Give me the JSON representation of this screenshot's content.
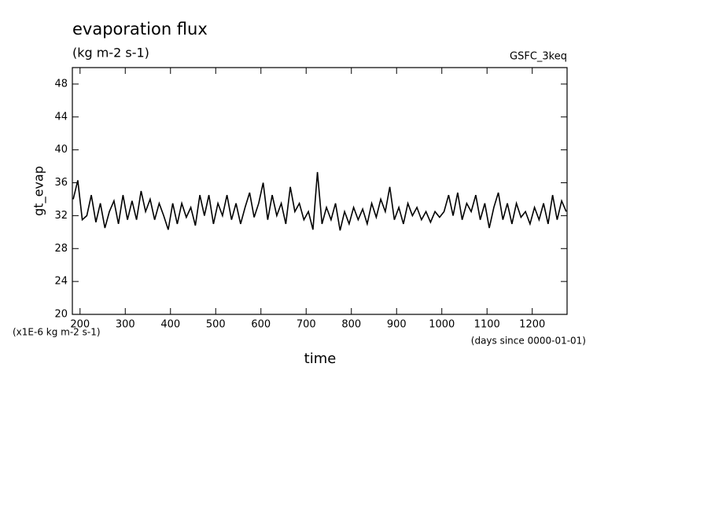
{
  "chart_data": {
    "type": "line",
    "title": "evaporation flux",
    "subtitle": "(kg m-2 s-1)",
    "annotation": "GSFC_3keq",
    "y_label": "gt_evap",
    "x_label": "time",
    "y_unit": "(x1E-6 kg m-2 s-1)",
    "x_unit": "(days since 0000-01-01)",
    "xlim": [
      183,
      1277
    ],
    "ylim": [
      20,
      50
    ],
    "xticks": [
      200,
      300,
      400,
      500,
      600,
      700,
      800,
      900,
      1000,
      1100,
      1200
    ],
    "yticks": [
      20,
      24,
      28,
      32,
      36,
      40,
      44,
      48
    ],
    "x": [
      185,
      195,
      205,
      215,
      225,
      235,
      245,
      255,
      265,
      275,
      285,
      295,
      305,
      315,
      325,
      335,
      345,
      355,
      365,
      375,
      385,
      395,
      405,
      415,
      425,
      435,
      445,
      455,
      465,
      475,
      485,
      495,
      505,
      515,
      525,
      535,
      545,
      555,
      565,
      575,
      585,
      595,
      605,
      615,
      625,
      635,
      645,
      655,
      665,
      675,
      685,
      695,
      705,
      715,
      725,
      735,
      745,
      755,
      765,
      775,
      785,
      795,
      805,
      815,
      825,
      835,
      845,
      855,
      865,
      875,
      885,
      895,
      905,
      915,
      925,
      935,
      945,
      955,
      965,
      975,
      985,
      995,
      1005,
      1015,
      1025,
      1035,
      1045,
      1055,
      1065,
      1075,
      1085,
      1095,
      1105,
      1115,
      1125,
      1135,
      1145,
      1155,
      1165,
      1175,
      1185,
      1195,
      1205,
      1215,
      1225,
      1235,
      1245,
      1255,
      1265,
      1275
    ],
    "series": [
      {
        "name": "gt_evap",
        "color": "#000000",
        "values": [
          34,
          36.3,
          31.5,
          32,
          34.5,
          31.2,
          33.5,
          30.5,
          32.5,
          33.8,
          31,
          34.5,
          31.5,
          33.8,
          31.5,
          35,
          32.5,
          34,
          31.5,
          33.5,
          32,
          30.3,
          33.5,
          31,
          33.5,
          31.8,
          33,
          30.8,
          34.5,
          32,
          34.5,
          31,
          33.5,
          32,
          34.5,
          31.5,
          33.5,
          31,
          33,
          34.8,
          31.8,
          33.5,
          36,
          31.5,
          34.5,
          32,
          33.5,
          31,
          35.5,
          32.5,
          33.5,
          31.5,
          32.5,
          30.3,
          37.3,
          31,
          33,
          31.5,
          33.5,
          30.2,
          32.5,
          31,
          33,
          31.5,
          32.8,
          31,
          33.5,
          31.8,
          34,
          32.5,
          35.5,
          31.5,
          33,
          31,
          33.5,
          32,
          33,
          31.5,
          32.5,
          31.2,
          32.5,
          31.8,
          32.5,
          34.5,
          32,
          34.8,
          31.5,
          33.5,
          32.5,
          34.5,
          31.5,
          33.5,
          30.5,
          33,
          34.8,
          31.5,
          33.5,
          31,
          33.5,
          31.8,
          32.5,
          31,
          33,
          31.5,
          33.5,
          31,
          34.5,
          31.5,
          33.8,
          32.5
        ]
      }
    ]
  }
}
